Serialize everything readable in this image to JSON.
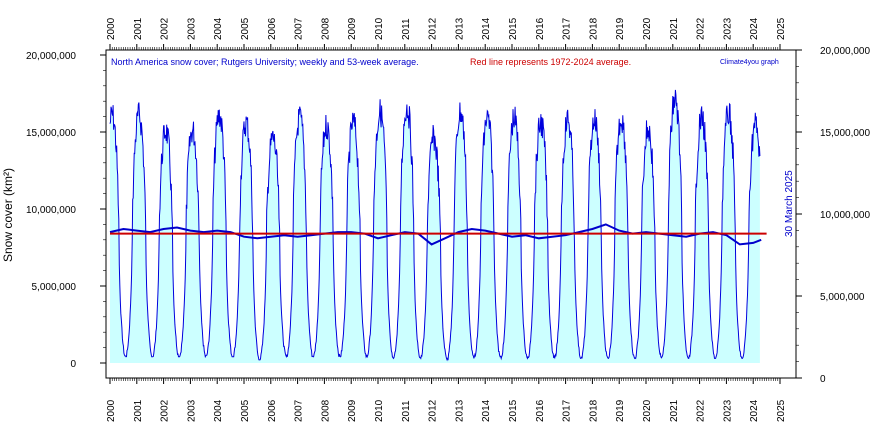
{
  "chart_data": {
    "type": "line",
    "title": "North America snow cover; Rutgers University; weekly and 53-week average.",
    "title_note": "Red line represents 1972-2024 average.",
    "credit": "Climate4you graph",
    "date_label": "30 March 2025",
    "ylabel": "Snow cover (km²)",
    "xlim": [
      2000,
      2025
    ],
    "ylim": [
      0,
      20000000
    ],
    "grid": false,
    "years": [
      "2000",
      "2001",
      "2002",
      "2003",
      "2004",
      "2005",
      "2006",
      "2007",
      "2008",
      "2009",
      "2010",
      "2011",
      "2012",
      "2013",
      "2014",
      "2015",
      "2016",
      "2017",
      "2018",
      "2019",
      "2020",
      "2021",
      "2022",
      "2023",
      "2024",
      "2025"
    ],
    "left_ticks": [
      {
        "value": 0,
        "label": "0"
      },
      {
        "value": 5000000,
        "label": "5,000,000"
      },
      {
        "value": 10000000,
        "label": "10,000,000"
      },
      {
        "value": 15000000,
        "label": "15,000,000"
      },
      {
        "value": 20000000,
        "label": "20,000,000"
      }
    ],
    "right_ticks": [
      {
        "value": 0,
        "label": "0"
      },
      {
        "value": 5000000,
        "label": "5,000,000"
      },
      {
        "value": 10000000,
        "label": "10,000,000"
      },
      {
        "value": 15000000,
        "label": "15,000,000"
      },
      {
        "value": 20000000,
        "label": "20,000,000"
      }
    ],
    "series": [
      {
        "name": "weekly",
        "color": "#0000dd",
        "fill": "#ccffff",
        "annual_peaks": [
          17000000,
          17000000,
          16000000,
          16000000,
          17000000,
          16500000,
          15500000,
          16800000,
          16300000,
          16500000,
          17200000,
          17500000,
          15500000,
          17200000,
          16800000,
          16800000,
          16500000,
          16700000,
          16700000,
          16800000,
          16100000,
          18000000,
          16800000,
          17100000,
          16400000
        ],
        "annual_mins": [
          400000,
          400000,
          400000,
          400000,
          400000,
          200000,
          400000,
          400000,
          400000,
          400000,
          300000,
          300000,
          200000,
          300000,
          300000,
          300000,
          300000,
          300000,
          300000,
          300000,
          300000,
          300000,
          300000,
          300000,
          300000
        ]
      },
      {
        "name": "53-week average",
        "color": "#0000cc",
        "x": [
          2000.0,
          2000.5,
          2001.0,
          2001.5,
          2002.0,
          2002.5,
          2003.0,
          2003.5,
          2004.0,
          2004.5,
          2005.0,
          2005.5,
          2006.0,
          2006.5,
          2007.0,
          2007.5,
          2008.0,
          2008.5,
          2009.0,
          2009.5,
          2010.0,
          2010.5,
          2011.0,
          2011.5,
          2012.0,
          2012.5,
          2013.0,
          2013.5,
          2014.0,
          2014.5,
          2015.0,
          2015.5,
          2016.0,
          2016.5,
          2017.0,
          2017.5,
          2018.0,
          2018.5,
          2019.0,
          2019.5,
          2020.0,
          2020.5,
          2021.0,
          2021.5,
          2022.0,
          2022.5,
          2023.0,
          2023.5,
          2024.0,
          2024.3
        ],
        "y": [
          8500000,
          8700000,
          8600000,
          8500000,
          8700000,
          8800000,
          8600000,
          8500000,
          8600000,
          8500000,
          8200000,
          8100000,
          8200000,
          8300000,
          8200000,
          8300000,
          8400000,
          8500000,
          8500000,
          8400000,
          8100000,
          8300000,
          8500000,
          8400000,
          7700000,
          8100000,
          8500000,
          8700000,
          8600000,
          8400000,
          8200000,
          8300000,
          8100000,
          8200000,
          8300000,
          8500000,
          8700000,
          9000000,
          8600000,
          8400000,
          8500000,
          8400000,
          8300000,
          8200000,
          8400000,
          8500000,
          8300000,
          7700000,
          7800000,
          8000000
        ]
      },
      {
        "name": "1972-2024 average",
        "color": "#cc0000",
        "value": 8400000
      }
    ]
  }
}
